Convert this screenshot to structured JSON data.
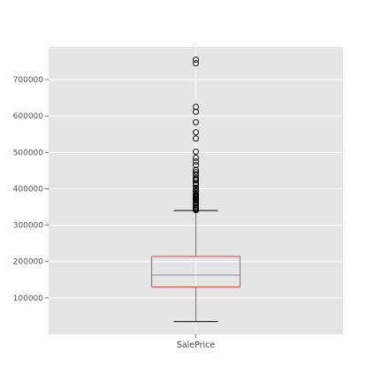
{
  "chart_data": {
    "type": "box",
    "title": "",
    "xlabel": "",
    "ylabel": "",
    "categories": [
      "SalePrice"
    ],
    "grid": true,
    "ylim": [
      0,
      790000
    ],
    "yticks": [
      100000,
      200000,
      300000,
      400000,
      500000,
      600000,
      700000
    ],
    "boxes": [
      {
        "category": "SalePrice",
        "whisker_low": 34900,
        "q1": 129975,
        "median": 163000,
        "q3": 214000,
        "whisker_high": 340000,
        "outliers": [
          341000,
          342643,
          345000,
          345474,
          348000,
          350000,
          354000,
          359100,
          360000,
          363000,
          367294,
          369900,
          372402,
          372500,
          375000,
          377426,
          378500,
          380000,
          381000,
          383970,
          385000,
          386250,
          392000,
          394432,
          395000,
          402000,
          403000,
          410000,
          412500,
          415298,
          423000,
          426000,
          430000,
          437154,
          440000,
          446261,
          451950,
          465000,
          475000,
          485000,
          501837,
          538000,
          555000,
          582933,
          611657,
          625000,
          745000,
          755000
        ]
      }
    ],
    "colors": {
      "background": "#e5e5e5",
      "grid": "#ffffff",
      "box": "#e24a33",
      "median": "#8b7fd8",
      "whisker": "#000000",
      "outlier": "#000000",
      "tick_text": "#555555"
    }
  }
}
